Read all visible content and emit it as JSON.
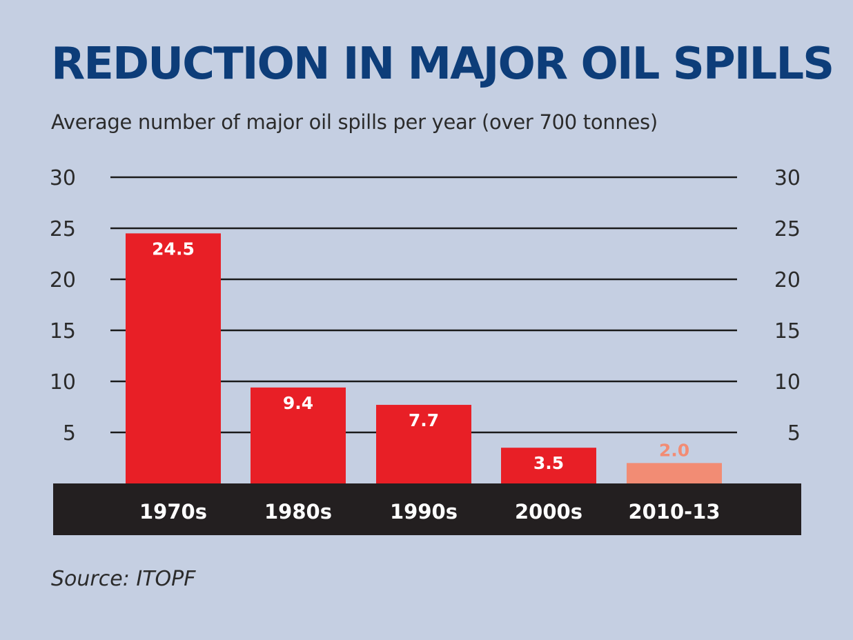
{
  "chart_data": {
    "type": "bar",
    "title": "REDUCTION IN MAJOR OIL SPILLS",
    "subtitle": "Average number of major oil spills per year (over 700 tonnes)",
    "categories": [
      "1970s",
      "1980s",
      "1990s",
      "2000s",
      "2010-13"
    ],
    "values": [
      24.5,
      9.4,
      7.7,
      3.5,
      2.0
    ],
    "value_labels": [
      "24.5",
      "9.4",
      "7.7",
      "3.5",
      "2.0"
    ],
    "bar_colors": [
      "#e81f26",
      "#e81f26",
      "#e81f26",
      "#e81f26",
      "#f28c74"
    ],
    "label_colors": [
      "#ffffff",
      "#ffffff",
      "#ffffff",
      "#ffffff",
      "#f28c74"
    ],
    "yticks": [
      5,
      10,
      15,
      20,
      25,
      30
    ],
    "ytick_labels": [
      "5",
      "10",
      "15",
      "20",
      "25",
      "30"
    ],
    "ylim": [
      0,
      30
    ],
    "grid": true,
    "y_axis_sides": "both",
    "xlabel": "",
    "ylabel": ""
  },
  "source": "Source: ITOPF",
  "colors": {
    "background": "#c5cfe2",
    "title": "#0d3d79",
    "category_band": "#231f20",
    "gridline": "#1a1a1a",
    "tick_text": "#2b2b2b"
  }
}
